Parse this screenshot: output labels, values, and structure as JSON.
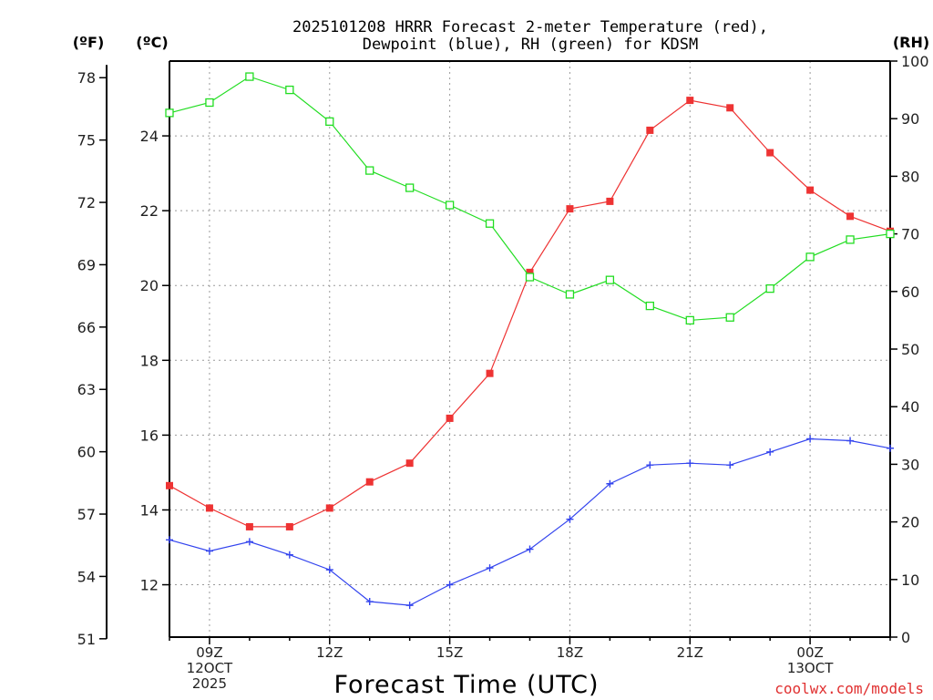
{
  "chart_data": {
    "type": "line",
    "title_line1": "2025101208 HRRR Forecast 2-meter Temperature (red),",
    "title_line2": "Dewpoint (blue), RH (green) for KDSM",
    "xlabel": "Forecast Time (UTC)",
    "credit": "coolwx.com/models",
    "unit_labels": {
      "fahrenheit": "(ºF)",
      "celsius": "(ºC)",
      "rh": "(RH)"
    },
    "x_hours": [
      8,
      9,
      10,
      11,
      12,
      13,
      14,
      15,
      16,
      17,
      18,
      19,
      20,
      21,
      22,
      23,
      24,
      25,
      26
    ],
    "xlim": [
      8,
      26
    ],
    "celsius_axis": {
      "ylim": [
        10.6,
        26.0
      ],
      "ticks": [
        "12",
        "14",
        "16",
        "18",
        "20",
        "22",
        "24"
      ]
    },
    "fahrenheit_axis": {
      "ticks": [
        "51",
        "54",
        "57",
        "60",
        "63",
        "66",
        "69",
        "72",
        "75",
        "78"
      ]
    },
    "rh_axis": {
      "ylim": [
        0,
        100
      ],
      "ticks": [
        "0",
        "10",
        "20",
        "30",
        "40",
        "50",
        "60",
        "70",
        "80",
        "90",
        "100"
      ]
    },
    "x_tick_labels": [
      {
        "hour": 9,
        "lines": [
          "09Z",
          "12OCT",
          "2025"
        ]
      },
      {
        "hour": 12,
        "lines": [
          "12Z"
        ]
      },
      {
        "hour": 15,
        "lines": [
          "15Z"
        ]
      },
      {
        "hour": 18,
        "lines": [
          "18Z"
        ]
      },
      {
        "hour": 21,
        "lines": [
          "21Z"
        ]
      },
      {
        "hour": 24,
        "lines": [
          "00Z",
          "13OCT"
        ]
      }
    ],
    "series": [
      {
        "name": "2-meter Temperature",
        "units": "C",
        "color": "#ee3333",
        "marker": "filled-square",
        "values": [
          14.65,
          14.05,
          13.55,
          13.55,
          14.05,
          14.75,
          15.25,
          16.45,
          17.65,
          20.35,
          22.05,
          22.25,
          24.15,
          24.95,
          24.75,
          23.55,
          22.55,
          21.85,
          21.45
        ]
      },
      {
        "name": "Dewpoint",
        "units": "C",
        "color": "#3344ee",
        "marker": "plus",
        "values": [
          13.2,
          12.9,
          13.15,
          12.8,
          12.4,
          11.55,
          11.45,
          12.0,
          12.45,
          12.95,
          13.75,
          14.7,
          15.2,
          15.25,
          15.2,
          15.55,
          15.9,
          15.85,
          15.65
        ]
      },
      {
        "name": "RH",
        "units": "%",
        "color": "#22dd22",
        "marker": "open-square",
        "values": [
          91.0,
          92.8,
          97.3,
          95.0,
          89.5,
          81.0,
          78.0,
          75.0,
          71.8,
          62.5,
          59.5,
          62.0,
          57.5,
          55.0,
          55.5,
          60.5,
          66.0,
          69.0,
          70.0
        ]
      }
    ]
  }
}
